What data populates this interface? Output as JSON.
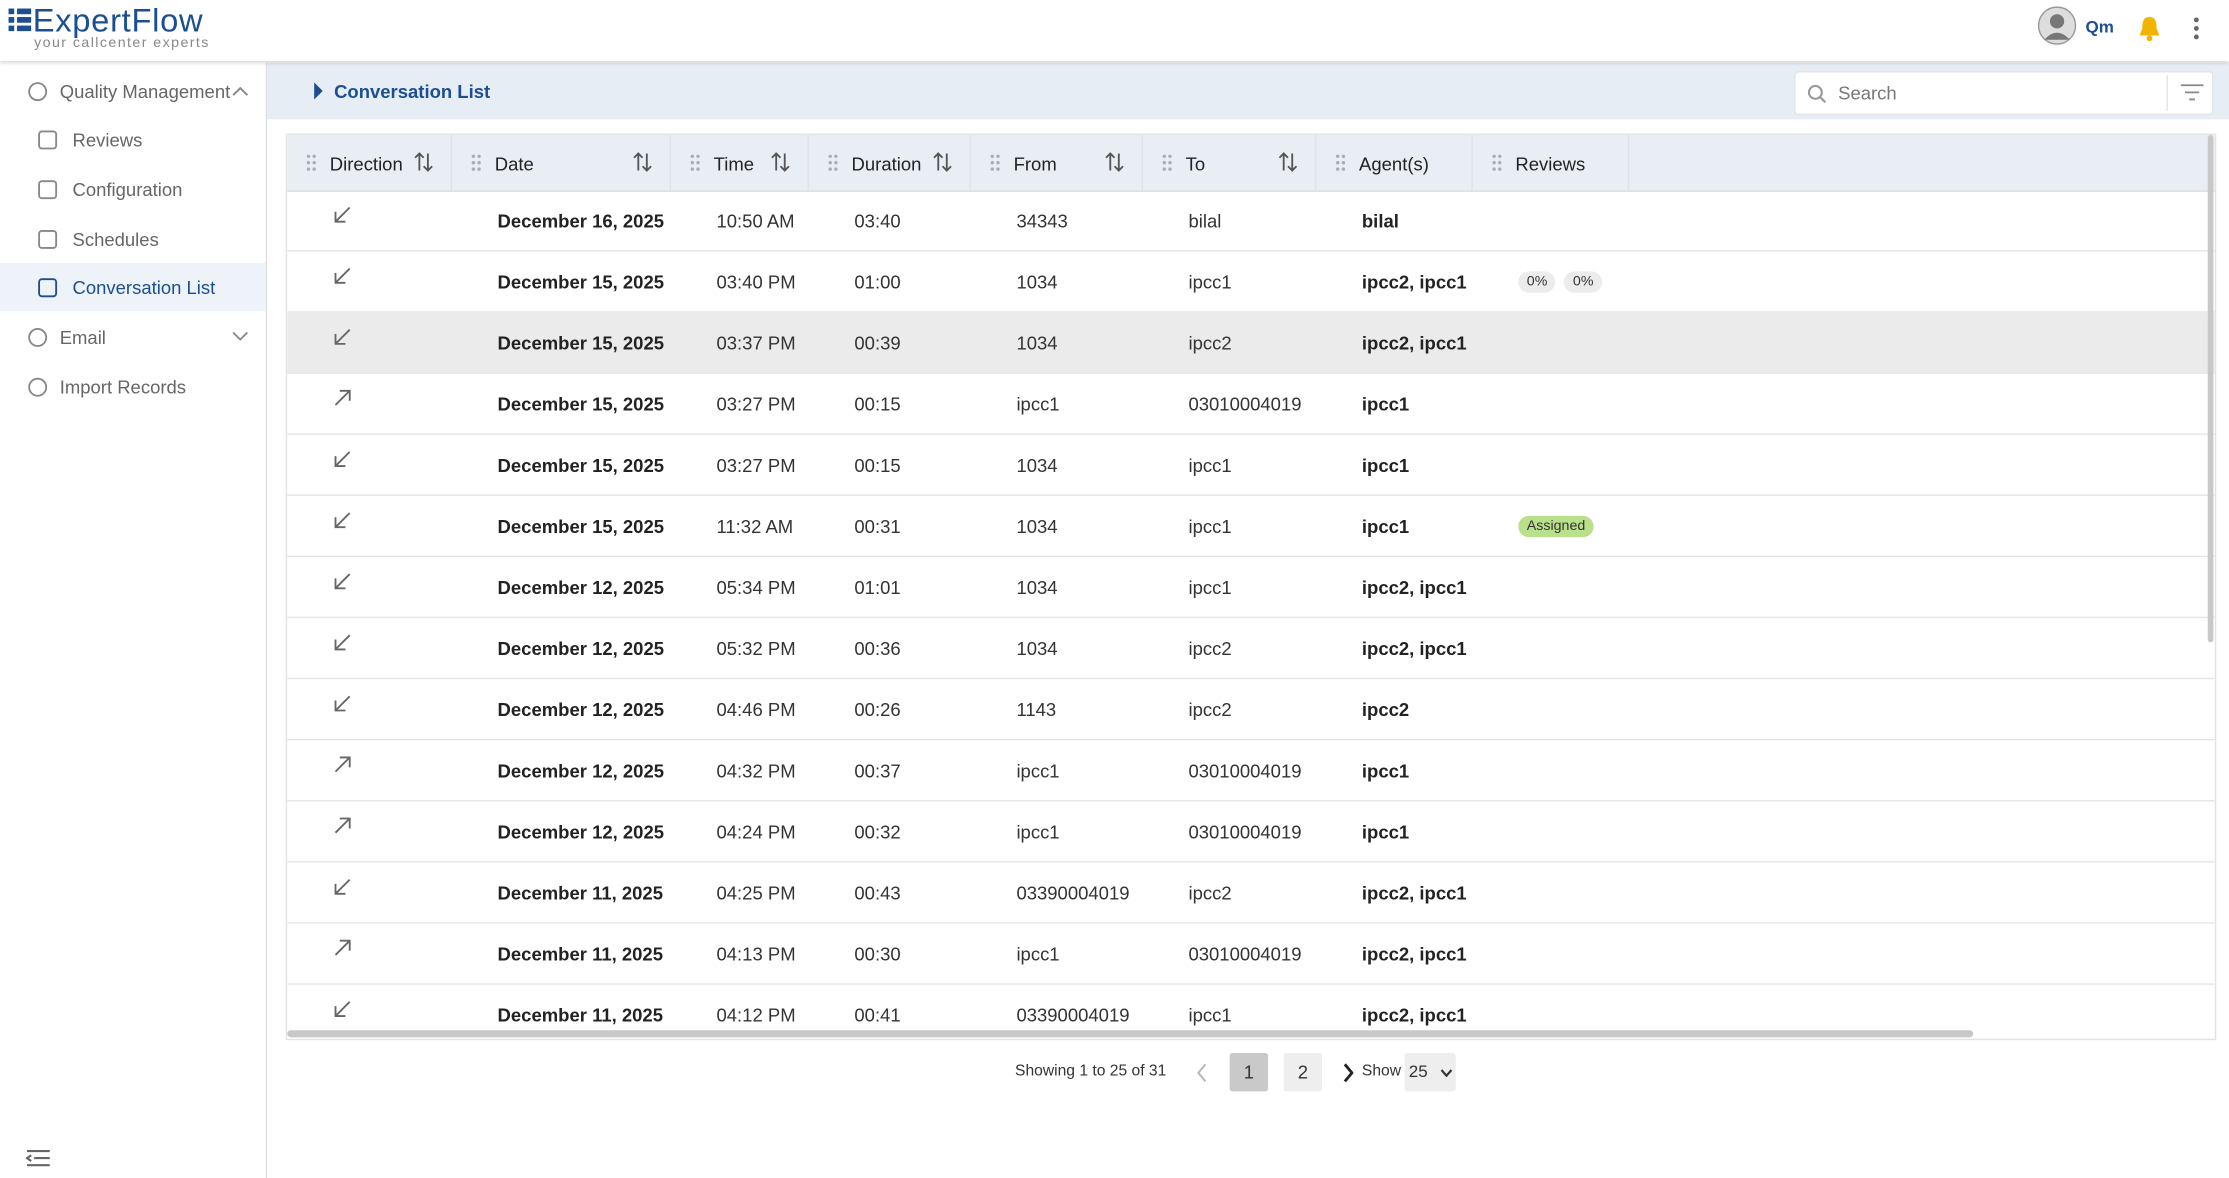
{
  "header": {
    "logo_name": "ExpertFlow",
    "tagline": "your callcenter experts",
    "user": "Qm"
  },
  "sidebar": {
    "items": [
      {
        "label": "Quality Management",
        "level": 0,
        "expanded": true
      },
      {
        "label": "Reviews",
        "level": 1
      },
      {
        "label": "Configuration",
        "level": 1
      },
      {
        "label": "Schedules",
        "level": 1
      },
      {
        "label": "Conversation List",
        "level": 1,
        "active": true
      },
      {
        "label": "Email",
        "level": 0,
        "expanded": false
      },
      {
        "label": "Import Records",
        "level": 0
      }
    ]
  },
  "breadcrumb": "Conversation List",
  "search": {
    "placeholder": "Search"
  },
  "table": {
    "columns": [
      "Direction",
      "Date",
      "Time",
      "Duration",
      "From",
      "To",
      "Agent(s)",
      "Reviews"
    ],
    "rows": [
      {
        "direction": "inbound",
        "cells": [
          "December 16, 2025",
          "10:50 AM",
          "03:40",
          "34343",
          "bilal",
          "bilal"
        ],
        "reviews": []
      },
      {
        "direction": "inbound",
        "cells": [
          "December 15, 2025",
          "03:40 PM",
          "01:00",
          "1034",
          "ipcc1",
          "ipcc2, ipcc1"
        ],
        "reviews": [
          {
            "label": "0%",
            "color": "#ececec"
          },
          {
            "label": "0%",
            "color": "#ececec"
          }
        ]
      },
      {
        "direction": "inbound",
        "cells": [
          "December 15, 2025",
          "03:37 PM",
          "00:39",
          "1034",
          "ipcc2",
          "ipcc2, ipcc1"
        ],
        "reviews": [],
        "highlighted": true
      },
      {
        "direction": "outbound",
        "cells": [
          "December 15, 2025",
          "03:27 PM",
          "00:15",
          "ipcc1",
          "03010004019",
          "ipcc1"
        ],
        "reviews": []
      },
      {
        "direction": "inbound",
        "cells": [
          "December 15, 2025",
          "03:27 PM",
          "00:15",
          "1034",
          "ipcc1",
          "ipcc1"
        ],
        "reviews": []
      },
      {
        "direction": "inbound",
        "cells": [
          "December 15, 2025",
          "11:32 AM",
          "00:31",
          "1034",
          "ipcc1",
          "ipcc1"
        ],
        "reviews": [
          {
            "label": "Assigned",
            "color": "#b9e08a"
          }
        ]
      },
      {
        "direction": "inbound",
        "cells": [
          "December 12, 2025",
          "05:34 PM",
          "01:01",
          "1034",
          "ipcc1",
          "ipcc2, ipcc1"
        ],
        "reviews": []
      },
      {
        "direction": "inbound",
        "cells": [
          "December 12, 2025",
          "05:32 PM",
          "00:36",
          "1034",
          "ipcc2",
          "ipcc2, ipcc1"
        ],
        "reviews": []
      },
      {
        "direction": "inbound",
        "cells": [
          "December 12, 2025",
          "04:46 PM",
          "00:26",
          "1143",
          "ipcc2",
          "ipcc2"
        ],
        "reviews": []
      },
      {
        "direction": "outbound",
        "cells": [
          "December 12, 2025",
          "04:32 PM",
          "00:37",
          "ipcc1",
          "03010004019",
          "ipcc1"
        ],
        "reviews": []
      },
      {
        "direction": "outbound",
        "cells": [
          "December 12, 2025",
          "04:24 PM",
          "00:32",
          "ipcc1",
          "03010004019",
          "ipcc1"
        ],
        "reviews": []
      },
      {
        "direction": "inbound",
        "cells": [
          "December 11, 2025",
          "04:25 PM",
          "00:43",
          "03390004019",
          "ipcc2",
          "ipcc2, ipcc1"
        ],
        "reviews": []
      },
      {
        "direction": "outbound",
        "cells": [
          "December 11, 2025",
          "04:13 PM",
          "00:30",
          "ipcc1",
          "03010004019",
          "ipcc2, ipcc1"
        ],
        "reviews": []
      },
      {
        "direction": "inbound",
        "cells": [
          "December 11, 2025",
          "04:12 PM",
          "00:41",
          "03390004019",
          "ipcc1",
          "ipcc2, ipcc1"
        ],
        "reviews": []
      }
    ]
  },
  "pagination": {
    "summary": "Showing 1 to 25 of 31",
    "pages": [
      "1",
      "2"
    ],
    "current": 0,
    "show_label": "Show",
    "page_size": "25"
  }
}
